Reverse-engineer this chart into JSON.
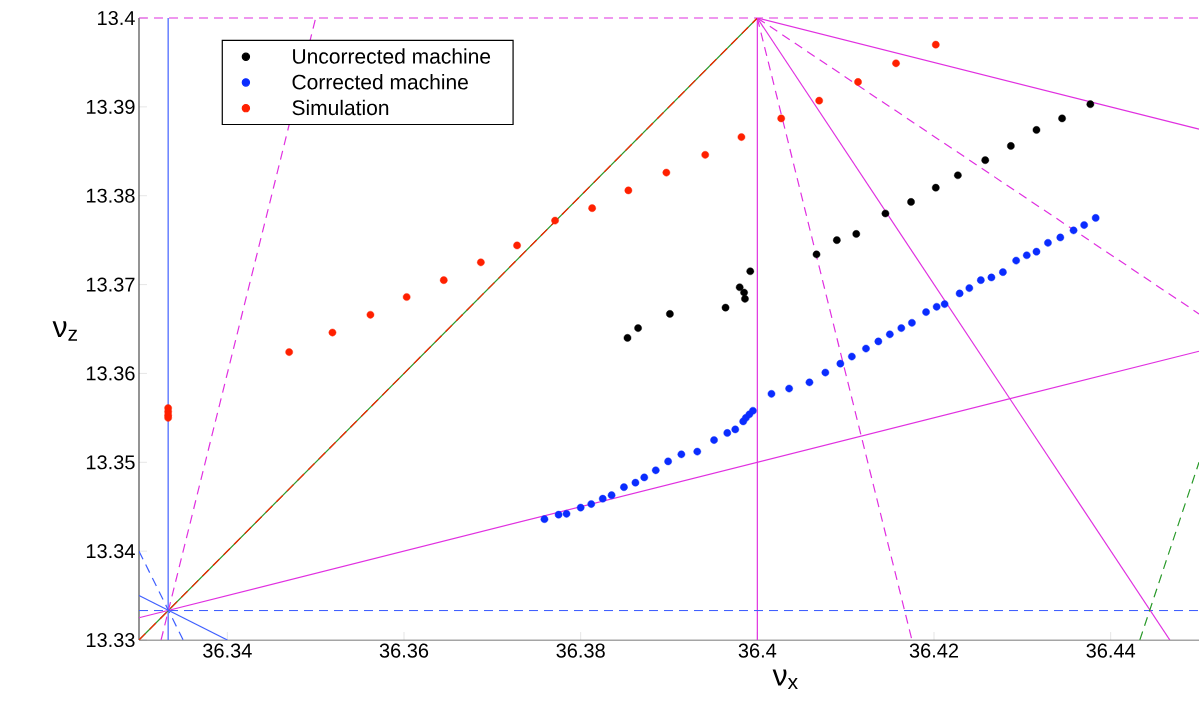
{
  "chart_data": {
    "type": "scatter",
    "xlabel": "ν$_{x}$",
    "ylabel": "ν$_{z}$",
    "xlim": [
      36.33,
      36.45
    ],
    "ylim": [
      13.33,
      13.4
    ],
    "xticks": [
      36.34,
      36.36,
      36.38,
      36.4,
      36.42,
      36.44
    ],
    "yticks": [
      13.33,
      13.34,
      13.35,
      13.36,
      13.37,
      13.38,
      13.39,
      13.4
    ],
    "legend": "top left",
    "grid": false,
    "series": [
      {
        "name": "Uncorrected machine",
        "color": "#000000",
        "marker": "circle",
        "x": [
          36.3853,
          36.3865,
          36.3901,
          36.3964,
          36.3986,
          36.3985,
          36.398,
          36.3992,
          36.4067,
          36.409,
          36.4112,
          36.4145,
          36.4174,
          36.4202,
          36.4227,
          36.4258,
          36.4287,
          36.4316,
          36.4345,
          36.4377
        ],
        "values": [
          13.364,
          13.3651,
          13.3667,
          13.3674,
          13.3684,
          13.3691,
          13.3697,
          13.3715,
          13.3734,
          13.375,
          13.3757,
          13.378,
          13.3793,
          13.3809,
          13.3823,
          13.384,
          13.3856,
          13.3874,
          13.3887,
          13.3903
        ]
      },
      {
        "name": "Corrected machine",
        "color": "#0a2cff",
        "marker": "circle",
        "x": [
          36.3759,
          36.3775,
          36.3784,
          36.38,
          36.3812,
          36.3825,
          36.3835,
          36.3849,
          36.3862,
          36.3872,
          36.3885,
          36.3899,
          36.3914,
          36.3932,
          36.3951,
          36.3966,
          36.3975,
          36.3984,
          36.3987,
          36.3991,
          36.3995,
          36.4016,
          36.4036,
          36.4059,
          36.4077,
          36.4094,
          36.4107,
          36.4123,
          36.4137,
          36.415,
          36.4163,
          36.4175,
          36.4191,
          36.4203,
          36.4212,
          36.4229,
          36.424,
          36.4253,
          36.4265,
          36.4278,
          36.4293,
          36.4305,
          36.4316,
          36.4329,
          36.4343,
          36.4358,
          36.437,
          36.4383
        ],
        "values": [
          13.3436,
          13.3441,
          13.3442,
          13.3449,
          13.3453,
          13.3459,
          13.3463,
          13.3472,
          13.3477,
          13.3483,
          13.3491,
          13.3501,
          13.3509,
          13.3512,
          13.3525,
          13.3533,
          13.3537,
          13.3546,
          13.355,
          13.3554,
          13.3558,
          13.3577,
          13.3583,
          13.359,
          13.3601,
          13.3611,
          13.3619,
          13.3628,
          13.3636,
          13.3644,
          13.3651,
          13.3657,
          13.3669,
          13.3675,
          13.3678,
          13.369,
          13.3696,
          13.3705,
          13.3708,
          13.3714,
          13.3727,
          13.3733,
          13.3737,
          13.3747,
          13.3753,
          13.3761,
          13.3767,
          13.3775
        ]
      },
      {
        "name": "Simulation",
        "color": "#ff2000",
        "marker": "circle",
        "x": [
          36.3333,
          36.3333,
          36.3333,
          36.3333,
          36.347,
          36.3519,
          36.3562,
          36.3603,
          36.3645,
          36.3687,
          36.3728,
          36.3771,
          36.3813,
          36.3854,
          36.3897,
          36.3941,
          36.3982,
          36.4027,
          36.407,
          36.4114,
          36.4157,
          36.4202
        ],
        "values": [
          13.3561,
          13.3557,
          13.3553,
          13.355,
          13.3624,
          13.3646,
          13.3666,
          13.3686,
          13.3705,
          13.3725,
          13.3744,
          13.3772,
          13.3786,
          13.3806,
          13.3826,
          13.3846,
          13.3866,
          13.3887,
          13.3907,
          13.3928,
          13.3949,
          13.397
        ]
      },
      {
        "type": "line",
        "color": "#2a9a2a",
        "line_style": "solid",
        "marker": "none",
        "x": [
          36.33,
          36.4
        ],
        "values": [
          13.33,
          13.4
        ]
      },
      {
        "type": "line",
        "color": "#ff2000",
        "line_style": "dashed",
        "marker": "none",
        "x": [
          36.33,
          36.4
        ],
        "values": [
          13.33,
          13.4
        ]
      },
      {
        "type": "line",
        "color": "#e030e0",
        "line_style": "solid",
        "marker": "none",
        "x": [
          36.4,
          36.45
        ],
        "values": [
          13.4,
          13.3875
        ]
      },
      {
        "type": "line",
        "color": "#e030e0",
        "line_style": "dashed",
        "marker": "none",
        "x": [
          36.4,
          36.45
        ],
        "values": [
          13.4,
          13.3667
        ]
      },
      {
        "type": "line",
        "color": "#e030e0",
        "line_style": "solid",
        "marker": "none",
        "x": [
          36.4,
          36.4467
        ],
        "values": [
          13.4,
          13.33
        ]
      },
      {
        "type": "line",
        "color": "#e030e0",
        "line_style": "dashed",
        "marker": "none",
        "x": [
          36.4,
          36.4175
        ],
        "values": [
          13.4,
          13.33
        ]
      },
      {
        "type": "line",
        "color": "#e030e0",
        "line_style": "solid",
        "marker": "none",
        "x": [
          36.33,
          36.45
        ],
        "values": [
          13.3325,
          13.3625
        ]
      },
      {
        "type": "line",
        "color": "#e030e0",
        "line_style": "dashed",
        "marker": "none",
        "x": [
          36.3325,
          36.35
        ],
        "values": [
          13.33,
          13.4
        ]
      },
      {
        "type": "line",
        "color": "#2a9a2a",
        "line_style": "dashed",
        "marker": "none",
        "x": [
          36.4433,
          36.45
        ],
        "values": [
          13.33,
          13.35
        ]
      },
      {
        "type": "line",
        "color": "#4060ff",
        "line_style": "solid",
        "marker": "none",
        "x": [
          36.33,
          36.34
        ],
        "values": [
          13.335,
          13.33
        ]
      },
      {
        "type": "line",
        "color": "#4060ff",
        "line_style": "dashed",
        "marker": "none",
        "x": [
          36.33,
          36.335
        ],
        "values": [
          13.34,
          13.33
        ]
      }
    ],
    "ref_lines": [
      {
        "axis": "x",
        "value": 36.3333,
        "color": "#4060ff",
        "line_style": "solid"
      },
      {
        "axis": "x",
        "value": 36.4,
        "color": "#e030e0",
        "line_style": "solid"
      },
      {
        "axis": "y",
        "value": 13.3333,
        "color": "#4060ff",
        "line_style": "dashed"
      },
      {
        "axis": "y",
        "value": 13.4,
        "color": "#e030e0",
        "line_style": "dashed"
      }
    ]
  }
}
